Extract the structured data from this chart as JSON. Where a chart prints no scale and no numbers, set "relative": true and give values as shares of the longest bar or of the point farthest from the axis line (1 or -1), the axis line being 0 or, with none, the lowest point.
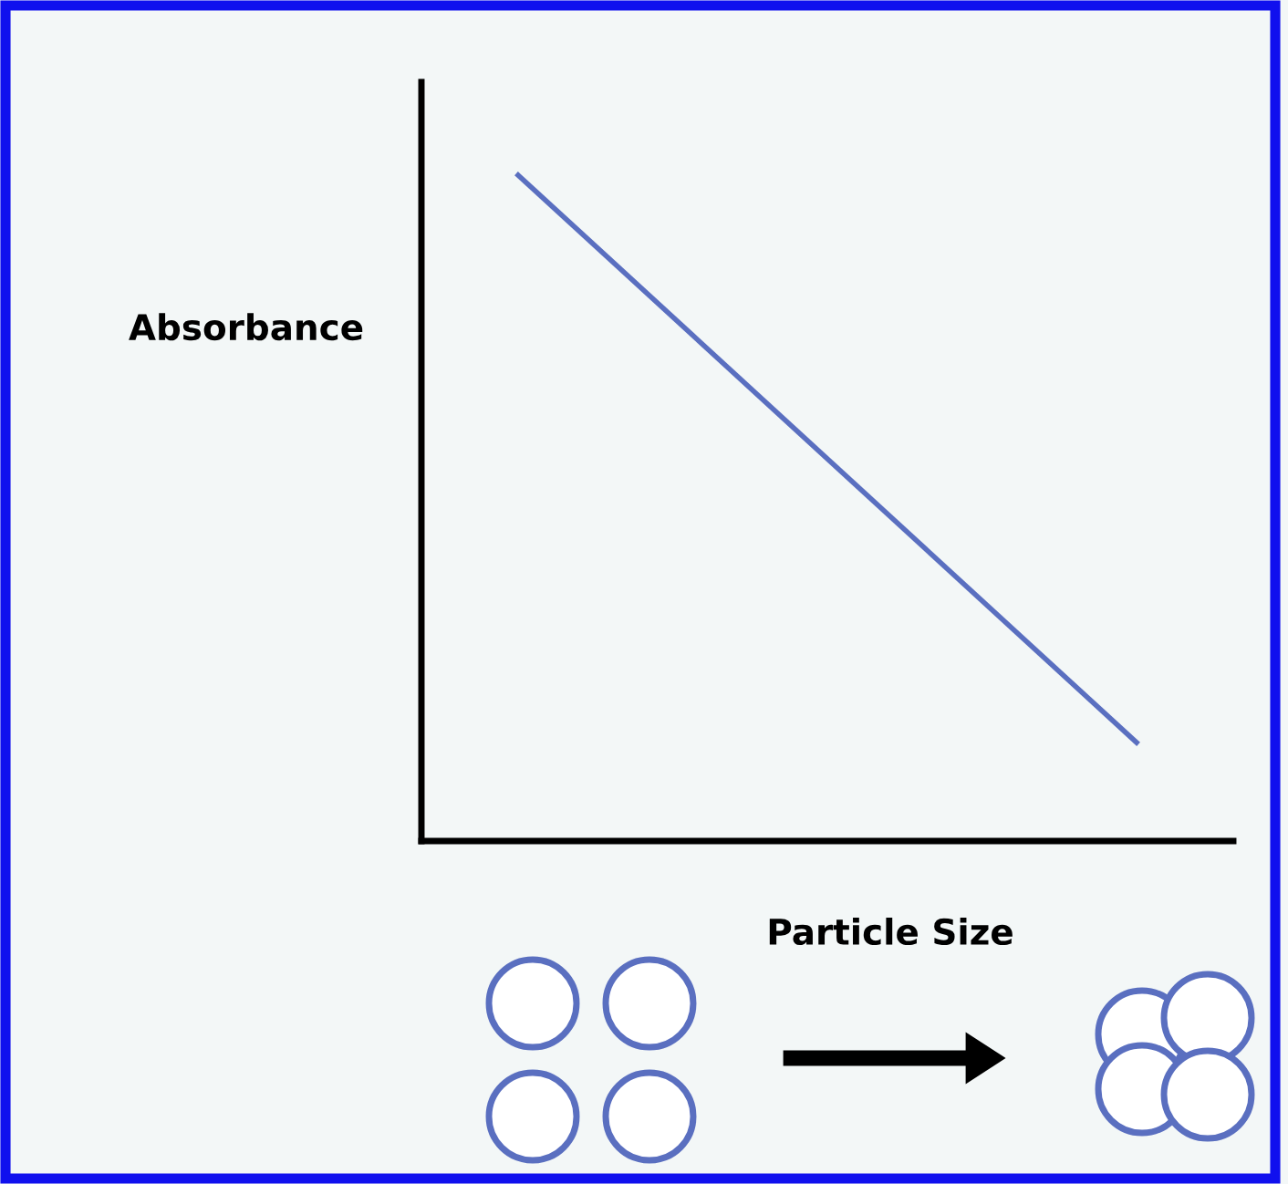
{
  "chart_data": {
    "type": "line",
    "relative": true,
    "xlabel": "Particle Size",
    "ylabel": "Absorbance",
    "categories": [
      null,
      null
    ],
    "grid": false,
    "legend": false,
    "series": [
      {
        "color": "#5a6fc0",
        "values": [
          1,
          0.148
        ]
      }
    ]
  }
}
